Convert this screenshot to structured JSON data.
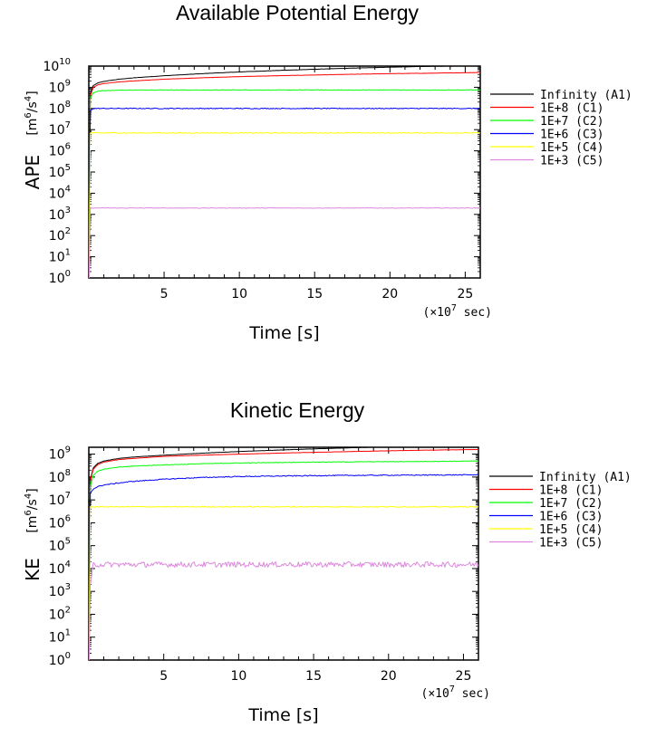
{
  "chart_data": [
    {
      "type": "line",
      "title": "Available Potential Energy",
      "ylabel": "APE",
      "yunit_base": "[m",
      "yunit_exp1": "6",
      "yunit_mid": "/s",
      "yunit_exp2": "4",
      "yunit_end": "]",
      "xlabel": "Time  [s]",
      "x_multiplier_label": "(×10",
      "x_multiplier_exp": "7",
      "x_multiplier_end": " sec)",
      "xlim": [
        0,
        26
      ],
      "ylim": [
        1,
        10000000000
      ],
      "yscale": "log",
      "x_ticks": [
        5,
        10,
        15,
        20,
        25
      ],
      "x_tick_labels": [
        "5",
        "10",
        "15",
        "20",
        "25"
      ],
      "y_tick_exponents": [
        "0",
        "1",
        "2",
        "3",
        "4",
        "5",
        "6",
        "7",
        "8",
        "9",
        "10"
      ],
      "legend_position": "right",
      "series": [
        {
          "name": "Infinity (A1)",
          "color": "#000000",
          "x": [
            0.1,
            0.3,
            0.6,
            1,
            2,
            3,
            5,
            7.5,
            10,
            12.5,
            15,
            17.5,
            20,
            22.5,
            26
          ],
          "y": [
            500000000,
            1200000000,
            1600000000,
            1900000000,
            2400000000,
            2800000000,
            3500000000,
            4400000000,
            5300000000,
            6200000000,
            7100000000,
            8000000000,
            8900000000,
            9700000000,
            10400000000
          ]
        },
        {
          "name": "1E+8 (C1)",
          "color": "#ff0000",
          "x": [
            0.1,
            0.3,
            0.6,
            1,
            2,
            3,
            5,
            7.5,
            10,
            12.5,
            15,
            17.5,
            20,
            22.5,
            26
          ],
          "y": [
            400000000,
            1000000000,
            1300000000,
            1500000000,
            1800000000,
            2000000000,
            2400000000,
            2800000000,
            3200000000,
            3500000000,
            3800000000,
            4100000000,
            4400000000,
            4600000000,
            5000000000
          ]
        },
        {
          "name": "1E+7 (C2)",
          "color": "#00ff00",
          "x": [
            0.1,
            0.3,
            0.6,
            1,
            2,
            3,
            5,
            7.5,
            10,
            12.5,
            15,
            17.5,
            20,
            22.5,
            26
          ],
          "y": [
            300000000,
            550000000,
            650000000,
            700000000,
            730000000,
            740000000,
            750000000,
            740000000,
            750000000,
            740000000,
            750000000,
            740000000,
            750000000,
            740000000,
            750000000
          ]
        },
        {
          "name": "1E+6 (C3)",
          "color": "#0000ff",
          "x": [
            0.1,
            0.3,
            1,
            5,
            10,
            15,
            20,
            26
          ],
          "y": [
            80000000,
            100000000,
            100000000,
            100000000,
            100000000,
            100000000,
            100000000,
            100000000
          ]
        },
        {
          "name": "1E+5 (C4)",
          "color": "#ffff00",
          "x": [
            0.1,
            0.3,
            1,
            5,
            10,
            15,
            20,
            26
          ],
          "y": [
            7000000,
            7000000,
            7000000,
            7000000,
            7000000,
            7000000,
            7000000,
            7000000
          ]
        },
        {
          "name": "1E+3 (C5)",
          "color": "#dd88dd",
          "x": [
            0.1,
            0.3,
            1,
            5,
            10,
            15,
            20,
            26
          ],
          "y": [
            2000,
            2000,
            2000,
            2000,
            2000,
            2000,
            2000,
            2000
          ]
        }
      ]
    },
    {
      "type": "line",
      "title": "Kinetic Energy",
      "ylabel": "KE",
      "yunit_base": "[m",
      "yunit_exp1": "6",
      "yunit_mid": "/s",
      "yunit_exp2": "4",
      "yunit_end": "]",
      "xlabel": "Time  [s]",
      "x_multiplier_label": "(×10",
      "x_multiplier_exp": "7",
      "x_multiplier_end": " sec)",
      "xlim": [
        0,
        26
      ],
      "ylim": [
        1,
        2000000000
      ],
      "yscale": "log",
      "x_ticks": [
        5,
        10,
        15,
        20,
        25
      ],
      "x_tick_labels": [
        "5",
        "10",
        "15",
        "20",
        "25"
      ],
      "y_tick_exponents": [
        "0",
        "1",
        "2",
        "3",
        "4",
        "5",
        "6",
        "7",
        "8",
        "9"
      ],
      "legend_position": "right",
      "series": [
        {
          "name": "Infinity (A1)",
          "color": "#000000",
          "x": [
            0.1,
            0.3,
            0.6,
            1,
            2,
            3,
            5,
            7.5,
            10,
            12.5,
            15,
            17.5,
            20,
            22.5,
            26
          ],
          "y": [
            80000000,
            250000000,
            400000000,
            500000000,
            650000000,
            750000000,
            900000000,
            1100000000,
            1300000000,
            1500000000,
            1700000000,
            1900000000,
            2100000000,
            2300000000,
            2500000000
          ]
        },
        {
          "name": "1E+8 (C1)",
          "color": "#ff0000",
          "x": [
            0.1,
            0.3,
            0.6,
            1,
            2,
            3,
            5,
            7.5,
            10,
            12.5,
            15,
            17.5,
            20,
            22.5,
            26
          ],
          "y": [
            70000000,
            220000000,
            350000000,
            450000000,
            580000000,
            650000000,
            800000000,
            900000000,
            1000000000,
            1100000000,
            1200000000,
            1300000000,
            1400000000,
            1500000000,
            1600000000
          ]
        },
        {
          "name": "1E+7 (C2)",
          "color": "#00ff00",
          "x": [
            0.1,
            0.3,
            0.6,
            1,
            2,
            3,
            5,
            7.5,
            10,
            12.5,
            15,
            17.5,
            20,
            22.5,
            26
          ],
          "y": [
            40000000,
            120000000,
            180000000,
            220000000,
            270000000,
            300000000,
            340000000,
            380000000,
            410000000,
            430000000,
            450000000,
            460000000,
            470000000,
            480000000,
            500000000
          ]
        },
        {
          "name": "1E+6 (C3)",
          "color": "#0000ff",
          "x": [
            0.1,
            0.3,
            0.6,
            1,
            2,
            3,
            5,
            7.5,
            10,
            12.5,
            15,
            17.5,
            20,
            22.5,
            26
          ],
          "y": [
            20000000,
            30000000,
            38000000,
            45000000,
            55000000,
            65000000,
            80000000,
            95000000,
            105000000,
            110000000,
            115000000,
            118000000,
            120000000,
            122000000,
            125000000
          ]
        },
        {
          "name": "1E+5 (C4)",
          "color": "#ffff00",
          "x": [
            0.1,
            0.3,
            1,
            5,
            10,
            15,
            20,
            26
          ],
          "y": [
            5000000,
            5000000,
            5000000,
            5000000,
            5000000,
            5000000,
            5000000,
            5000000
          ]
        },
        {
          "name": "1E+3 (C5)",
          "color": "#dd88dd",
          "x": [
            0.1,
            0.3,
            1,
            5,
            10,
            15,
            20,
            26
          ],
          "y": [
            1500,
            15000,
            15000,
            15000,
            15000,
            15000,
            15000,
            15000
          ]
        }
      ]
    }
  ]
}
